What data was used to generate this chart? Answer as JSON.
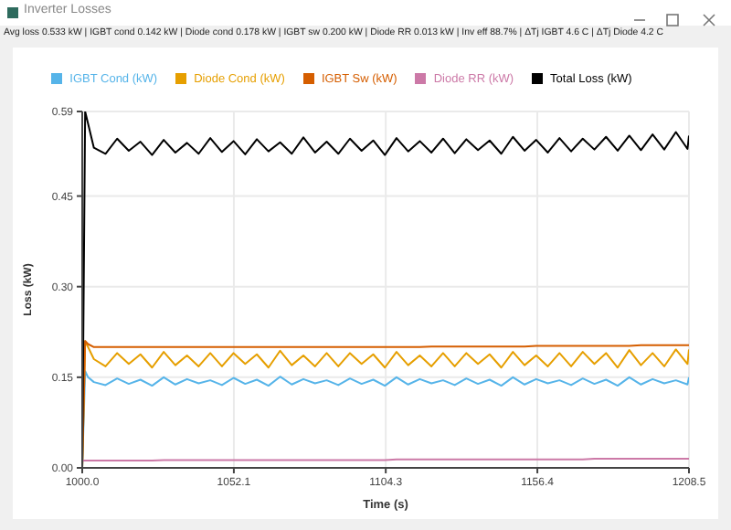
{
  "chart_data": {
    "type": "line",
    "title": "Inverter Losses",
    "subtitle": "Avg loss 0.533 kW | IGBT cond 0.142 kW | Diode cond 0.178 kW | IGBT sw 0.200 kW | Diode RR 0.013 kW | Inv eff 88.7% | ΔTj IGBT 4.6 C | ΔTj Diode 4.2 C",
    "xlabel": "Time (s)",
    "ylabel": "Loss (kW)",
    "x": [
      1000,
      1001,
      1002,
      1004,
      1008,
      1012,
      1016,
      1020,
      1024,
      1028,
      1032,
      1036,
      1040,
      1044,
      1048,
      1052,
      1056,
      1060,
      1064,
      1068,
      1072,
      1076,
      1080,
      1084,
      1088,
      1092,
      1096,
      1100,
      1104,
      1108,
      1112,
      1116,
      1120,
      1124,
      1128,
      1132,
      1136,
      1140,
      1144,
      1148,
      1152,
      1156,
      1160,
      1164,
      1168,
      1172,
      1176,
      1180,
      1184,
      1188,
      1192,
      1196,
      1200,
      1204,
      1208,
      1208.5
    ],
    "series": [
      {
        "name": "IGBT Cond (kW)",
        "color": "#56b4e9",
        "values": [
          0,
          0.16,
          0.15,
          0.142,
          0.137,
          0.148,
          0.139,
          0.146,
          0.136,
          0.15,
          0.138,
          0.147,
          0.14,
          0.145,
          0.137,
          0.149,
          0.139,
          0.146,
          0.136,
          0.151,
          0.138,
          0.147,
          0.14,
          0.145,
          0.137,
          0.148,
          0.139,
          0.146,
          0.136,
          0.15,
          0.138,
          0.147,
          0.14,
          0.145,
          0.137,
          0.148,
          0.139,
          0.146,
          0.136,
          0.15,
          0.138,
          0.147,
          0.14,
          0.145,
          0.137,
          0.148,
          0.139,
          0.146,
          0.136,
          0.15,
          0.138,
          0.147,
          0.14,
          0.145,
          0.138,
          0.15
        ]
      },
      {
        "name": "Diode Cond (kW)",
        "color": "#e69f00",
        "values": [
          0,
          0.21,
          0.2,
          0.18,
          0.168,
          0.19,
          0.172,
          0.188,
          0.166,
          0.192,
          0.17,
          0.186,
          0.168,
          0.19,
          0.168,
          0.19,
          0.172,
          0.188,
          0.166,
          0.194,
          0.17,
          0.186,
          0.168,
          0.19,
          0.168,
          0.19,
          0.172,
          0.188,
          0.166,
          0.192,
          0.17,
          0.186,
          0.168,
          0.19,
          0.168,
          0.19,
          0.172,
          0.188,
          0.166,
          0.192,
          0.17,
          0.186,
          0.168,
          0.19,
          0.168,
          0.192,
          0.172,
          0.19,
          0.166,
          0.195,
          0.17,
          0.19,
          0.168,
          0.196,
          0.172,
          0.196
        ]
      },
      {
        "name": "IGBT Sw (kW)",
        "color": "#d55e00",
        "values": [
          0,
          0.21,
          0.205,
          0.2,
          0.2,
          0.2,
          0.2,
          0.2,
          0.2,
          0.2,
          0.2,
          0.2,
          0.2,
          0.2,
          0.2,
          0.2,
          0.2,
          0.2,
          0.2,
          0.2,
          0.2,
          0.2,
          0.2,
          0.2,
          0.2,
          0.2,
          0.2,
          0.2,
          0.2,
          0.2,
          0.2,
          0.2,
          0.201,
          0.201,
          0.201,
          0.201,
          0.201,
          0.201,
          0.201,
          0.201,
          0.201,
          0.202,
          0.202,
          0.202,
          0.202,
          0.202,
          0.202,
          0.202,
          0.202,
          0.202,
          0.203,
          0.203,
          0.203,
          0.203,
          0.203,
          0.203
        ]
      },
      {
        "name": "Diode RR (kW)",
        "color": "#cc79a7",
        "values": [
          0.012,
          0.012,
          0.012,
          0.012,
          0.012,
          0.012,
          0.012,
          0.012,
          0.012,
          0.013,
          0.013,
          0.013,
          0.013,
          0.013,
          0.013,
          0.013,
          0.013,
          0.013,
          0.013,
          0.013,
          0.013,
          0.013,
          0.013,
          0.013,
          0.013,
          0.013,
          0.013,
          0.013,
          0.013,
          0.014,
          0.014,
          0.014,
          0.014,
          0.014,
          0.014,
          0.014,
          0.014,
          0.014,
          0.014,
          0.014,
          0.014,
          0.014,
          0.014,
          0.014,
          0.014,
          0.014,
          0.015,
          0.015,
          0.015,
          0.015,
          0.015,
          0.015,
          0.015,
          0.015,
          0.015,
          0.015
        ]
      },
      {
        "name": "Total Loss (kW)",
        "color": "#000000",
        "values": [
          0,
          0.59,
          0.57,
          0.53,
          0.52,
          0.545,
          0.525,
          0.54,
          0.518,
          0.543,
          0.522,
          0.538,
          0.52,
          0.546,
          0.523,
          0.541,
          0.519,
          0.544,
          0.524,
          0.539,
          0.52,
          0.547,
          0.522,
          0.54,
          0.52,
          0.545,
          0.525,
          0.542,
          0.518,
          0.546,
          0.524,
          0.541,
          0.522,
          0.545,
          0.521,
          0.544,
          0.526,
          0.542,
          0.52,
          0.548,
          0.525,
          0.543,
          0.522,
          0.546,
          0.524,
          0.545,
          0.527,
          0.548,
          0.525,
          0.55,
          0.526,
          0.552,
          0.527,
          0.556,
          0.528,
          0.55
        ]
      }
    ],
    "xlim": [
      1000,
      1208.5
    ],
    "xticks": [
      {
        "value": 1000,
        "label": "1000.0"
      },
      {
        "value": 1052.1,
        "label": "1052.1"
      },
      {
        "value": 1104.3,
        "label": "1104.3"
      },
      {
        "value": 1156.4,
        "label": "1156.4"
      },
      {
        "value": 1208.5,
        "label": "1208.5"
      }
    ],
    "ylim": [
      0,
      0.59
    ],
    "yticks": [
      {
        "value": 0,
        "label": "0.00"
      },
      {
        "value": 0.15,
        "label": "0.15"
      },
      {
        "value": 0.3,
        "label": "0.30"
      },
      {
        "value": 0.45,
        "label": "0.45"
      },
      {
        "value": 0.59,
        "label": "0.59"
      }
    ],
    "grid": true,
    "legend": "top"
  }
}
